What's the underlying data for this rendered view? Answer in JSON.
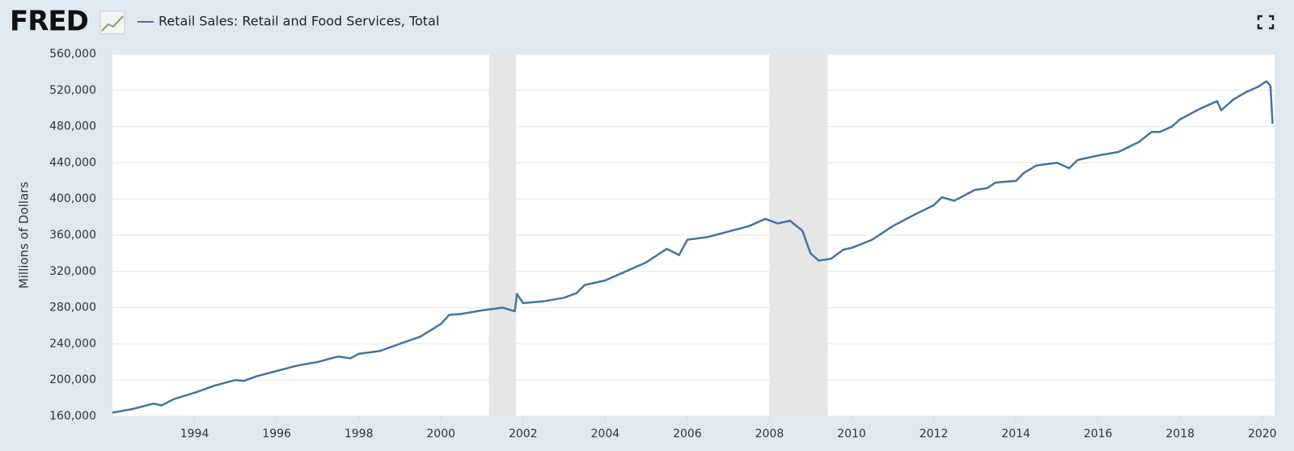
{
  "brand": "FRED",
  "chart_data": {
    "type": "line",
    "y_label": "Millions of Dollars",
    "series": [
      {
        "name": "Retail Sales: Retail and Food Services, Total",
        "color": "#4572a7",
        "x": [
          1992.0,
          1992.5,
          1993.0,
          1993.2,
          1993.5,
          1994.0,
          1994.5,
          1995.0,
          1995.2,
          1995.5,
          1996.0,
          1996.5,
          1997.0,
          1997.5,
          1997.8,
          1998.0,
          1998.5,
          1999.0,
          1999.5,
          2000.0,
          2000.2,
          2000.5,
          2001.0,
          2001.5,
          2001.8,
          2001.85,
          2002.0,
          2002.5,
          2003.0,
          2003.3,
          2003.5,
          2004.0,
          2004.5,
          2005.0,
          2005.5,
          2005.8,
          2006.0,
          2006.5,
          2007.0,
          2007.5,
          2007.9,
          2008.2,
          2008.5,
          2008.8,
          2009.0,
          2009.2,
          2009.5,
          2009.8,
          2010.0,
          2010.5,
          2011.0,
          2011.5,
          2012.0,
          2012.2,
          2012.5,
          2013.0,
          2013.3,
          2013.5,
          2014.0,
          2014.2,
          2014.5,
          2015.0,
          2015.3,
          2015.5,
          2016.0,
          2016.5,
          2017.0,
          2017.3,
          2017.5,
          2017.8,
          2018.0,
          2018.5,
          2018.9,
          2019.0,
          2019.3,
          2019.6,
          2019.9,
          2020.1,
          2020.2,
          2020.25
        ],
        "values": [
          164000,
          168000,
          174000,
          172000,
          179000,
          186000,
          194000,
          200000,
          199000,
          204000,
          210000,
          216000,
          220000,
          226000,
          224000,
          229000,
          232000,
          240000,
          248000,
          262000,
          272000,
          273000,
          277000,
          280000,
          276000,
          295000,
          285000,
          287000,
          291000,
          296000,
          305000,
          310000,
          320000,
          330000,
          345000,
          338000,
          355000,
          358000,
          364000,
          370000,
          378000,
          373000,
          376000,
          365000,
          340000,
          332000,
          334000,
          344000,
          346000,
          355000,
          370000,
          382000,
          393000,
          402000,
          398000,
          410000,
          412000,
          418000,
          420000,
          429000,
          437000,
          440000,
          434000,
          443000,
          448000,
          452000,
          463000,
          474000,
          474000,
          480000,
          488000,
          500000,
          508000,
          498000,
          510000,
          518000,
          524000,
          530000,
          525000,
          483000
        ]
      }
    ],
    "recessions": [
      {
        "start": 2001.17,
        "end": 2001.83
      },
      {
        "start": 2008.0,
        "end": 2009.42
      }
    ],
    "xlim": [
      1992,
      2020.3
    ],
    "xticks": [
      1994,
      1996,
      1998,
      2000,
      2002,
      2004,
      2006,
      2008,
      2010,
      2012,
      2014,
      2016,
      2018,
      2020
    ],
    "ylim": [
      160000,
      560000
    ],
    "yticks": [
      {
        "value": 160000,
        "label": "160,000"
      },
      {
        "value": 200000,
        "label": "200,000"
      },
      {
        "value": 240000,
        "label": "240,000"
      },
      {
        "value": 280000,
        "label": "280,000"
      },
      {
        "value": 320000,
        "label": "320,000"
      },
      {
        "value": 360000,
        "label": "360,000"
      },
      {
        "value": 400000,
        "label": "400,000"
      },
      {
        "value": 440000,
        "label": "440,000"
      },
      {
        "value": 480000,
        "label": "480,000"
      },
      {
        "value": 520000,
        "label": "520,000"
      },
      {
        "value": 560000,
        "label": "560,000"
      }
    ],
    "grid": true
  }
}
